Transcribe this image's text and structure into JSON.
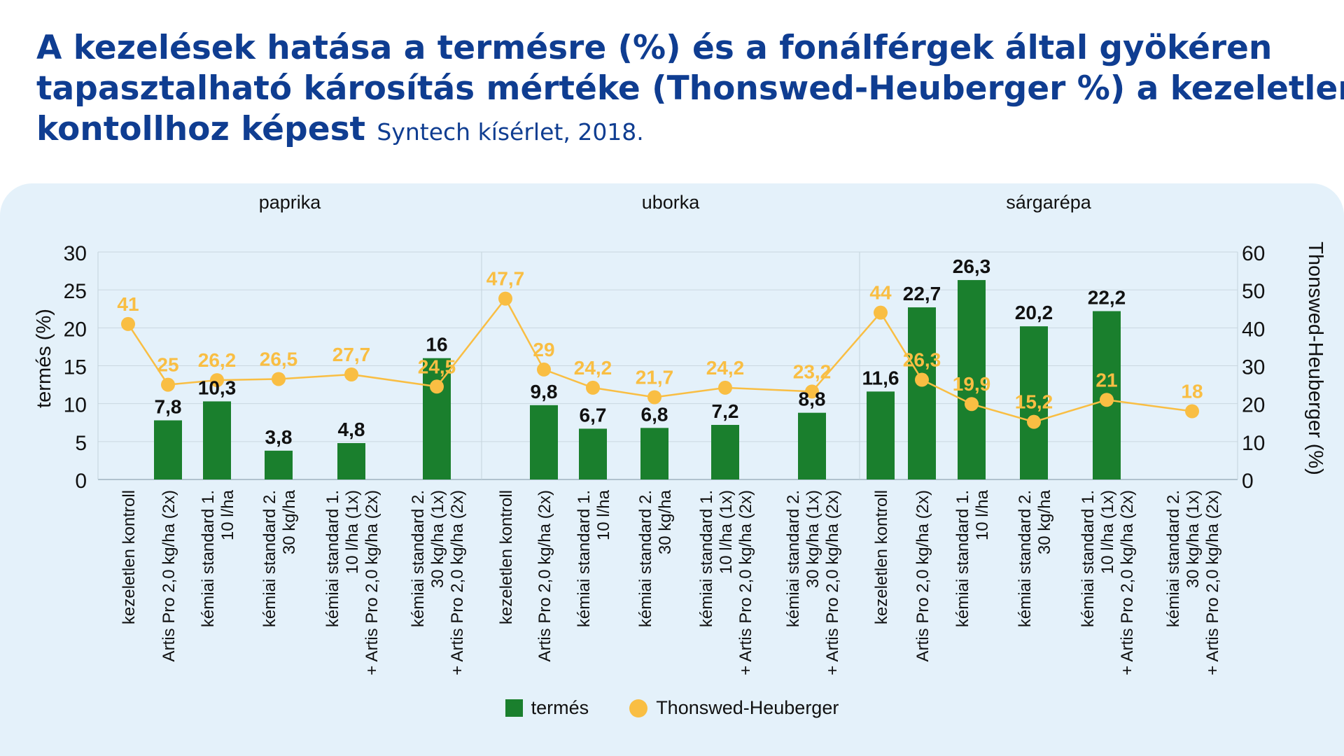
{
  "title": {
    "line1": "A kezelések hatása a termésre (%) és a fonálférgek által gyökéren",
    "line2": "tapasztalható károsítás mértéke (Thonswed-Heuberger %) a kezeletlen",
    "line3": "kontollhoz képest",
    "subtitle": "Syntech kísérlet, 2018."
  },
  "legend": {
    "bar_label": "termés",
    "line_label": "Thonswed-Heuberger"
  },
  "colors": {
    "bar": "#1a7f2d",
    "line": "#f9be43",
    "panel": "#e4f1fa",
    "title": "#0f3d91",
    "grid": "#c9d7e0"
  },
  "chart_data": {
    "type": "bar",
    "groups": [
      "paprika",
      "uborka",
      "sárgarépa"
    ],
    "ylabel": "termés (%)",
    "y2label": "Thonswed-Heuberger (%)",
    "ylim": [
      0,
      30
    ],
    "yticks": [
      0,
      5,
      10,
      15,
      20,
      25,
      30
    ],
    "y2lim": [
      0,
      60
    ],
    "y2ticks": [
      0,
      10,
      20,
      30,
      40,
      50,
      60
    ],
    "grid": true,
    "legend_position": "bottom-center",
    "categories": [
      {
        "group": "paprika",
        "lines": [
          "kezeletlen kontroll"
        ]
      },
      {
        "group": "paprika",
        "lines": [
          "Artis Pro 2,0 kg/ha (2x)"
        ]
      },
      {
        "group": "paprika",
        "lines": [
          "kémiai standard 1.",
          "10 l/ha"
        ]
      },
      {
        "group": "paprika",
        "lines": [
          "kémiai standard 2.",
          "30 kg/ha"
        ]
      },
      {
        "group": "paprika",
        "lines": [
          "kémiai standard 1.",
          "10 l/ha (1x)",
          "+ Artis Pro 2,0 kg/ha (2x)"
        ]
      },
      {
        "group": "paprika",
        "lines": [
          "kémiai standard 2.",
          "30 kg/ha (1x)",
          "+ Artis Pro 2,0 kg/ha (2x)"
        ]
      },
      {
        "group": "uborka",
        "lines": [
          "kezeletlen kontroll"
        ]
      },
      {
        "group": "uborka",
        "lines": [
          "Artis Pro 2,0 kg/ha (2x)"
        ]
      },
      {
        "group": "uborka",
        "lines": [
          "kémiai standard 1.",
          "10 l/ha"
        ]
      },
      {
        "group": "uborka",
        "lines": [
          "kémiai standard 2.",
          "30 kg/ha"
        ]
      },
      {
        "group": "uborka",
        "lines": [
          "kémiai standard 1.",
          "10 l/ha (1x)",
          "+ Artis Pro 2,0 kg/ha (2x)"
        ]
      },
      {
        "group": "uborka",
        "lines": [
          "kémiai standard 2.",
          "30 kg/ha (1x)",
          "+ Artis Pro 2,0 kg/ha (2x)"
        ]
      },
      {
        "group": "sárgarépa",
        "lines": [
          "kezeletlen kontroll"
        ]
      },
      {
        "group": "sárgarépa",
        "lines": [
          "Artis Pro 2,0 kg/ha (2x)"
        ]
      },
      {
        "group": "sárgarépa",
        "lines": [
          "kémiai standard 1.",
          "10 l/ha"
        ]
      },
      {
        "group": "sárgarépa",
        "lines": [
          "kémiai standard 2.",
          "30 kg/ha"
        ]
      },
      {
        "group": "sárgarépa",
        "lines": [
          "kémiai standard 1.",
          "10 l/ha (1x)",
          "+ Artis Pro 2,0 kg/ha (2x)"
        ]
      },
      {
        "group": "sárgarépa",
        "lines": [
          "kémiai standard 2.",
          "30 kg/ha (1x)",
          "+ Artis Pro 2,0 kg/ha (2x)"
        ]
      }
    ],
    "series": [
      {
        "name": "termés",
        "type": "bar",
        "axis": "left",
        "values": [
          null,
          7.8,
          10.3,
          3.8,
          4.8,
          16,
          null,
          9.8,
          6.7,
          6.8,
          7.2,
          8.8,
          11.6,
          22.7,
          26.3,
          20.2,
          22.2,
          null
        ],
        "labels": [
          "",
          "7,8",
          "10,3",
          "3,8",
          "4,8",
          "16",
          "",
          "9,8",
          "6,7",
          "6,8",
          "7,2",
          "8,8",
          "11,6",
          "22,7",
          "26,3",
          "20,2",
          "22,2",
          ""
        ]
      },
      {
        "name": "Thonswed-Heuberger",
        "type": "line",
        "axis": "right",
        "values": [
          41,
          25,
          26.2,
          26.5,
          27.7,
          24.5,
          47.7,
          29,
          24.2,
          21.7,
          24.2,
          23.2,
          44,
          26.3,
          19.9,
          15.2,
          21,
          18
        ],
        "labels": [
          "41",
          "25",
          "26,2",
          "26,5",
          "27,7",
          "24,5",
          "47,7",
          "29",
          "24,2",
          "21,7",
          "24,2",
          "23,2",
          "44",
          "26,3",
          "19,9",
          "15,2",
          "21",
          "18"
        ]
      }
    ]
  }
}
